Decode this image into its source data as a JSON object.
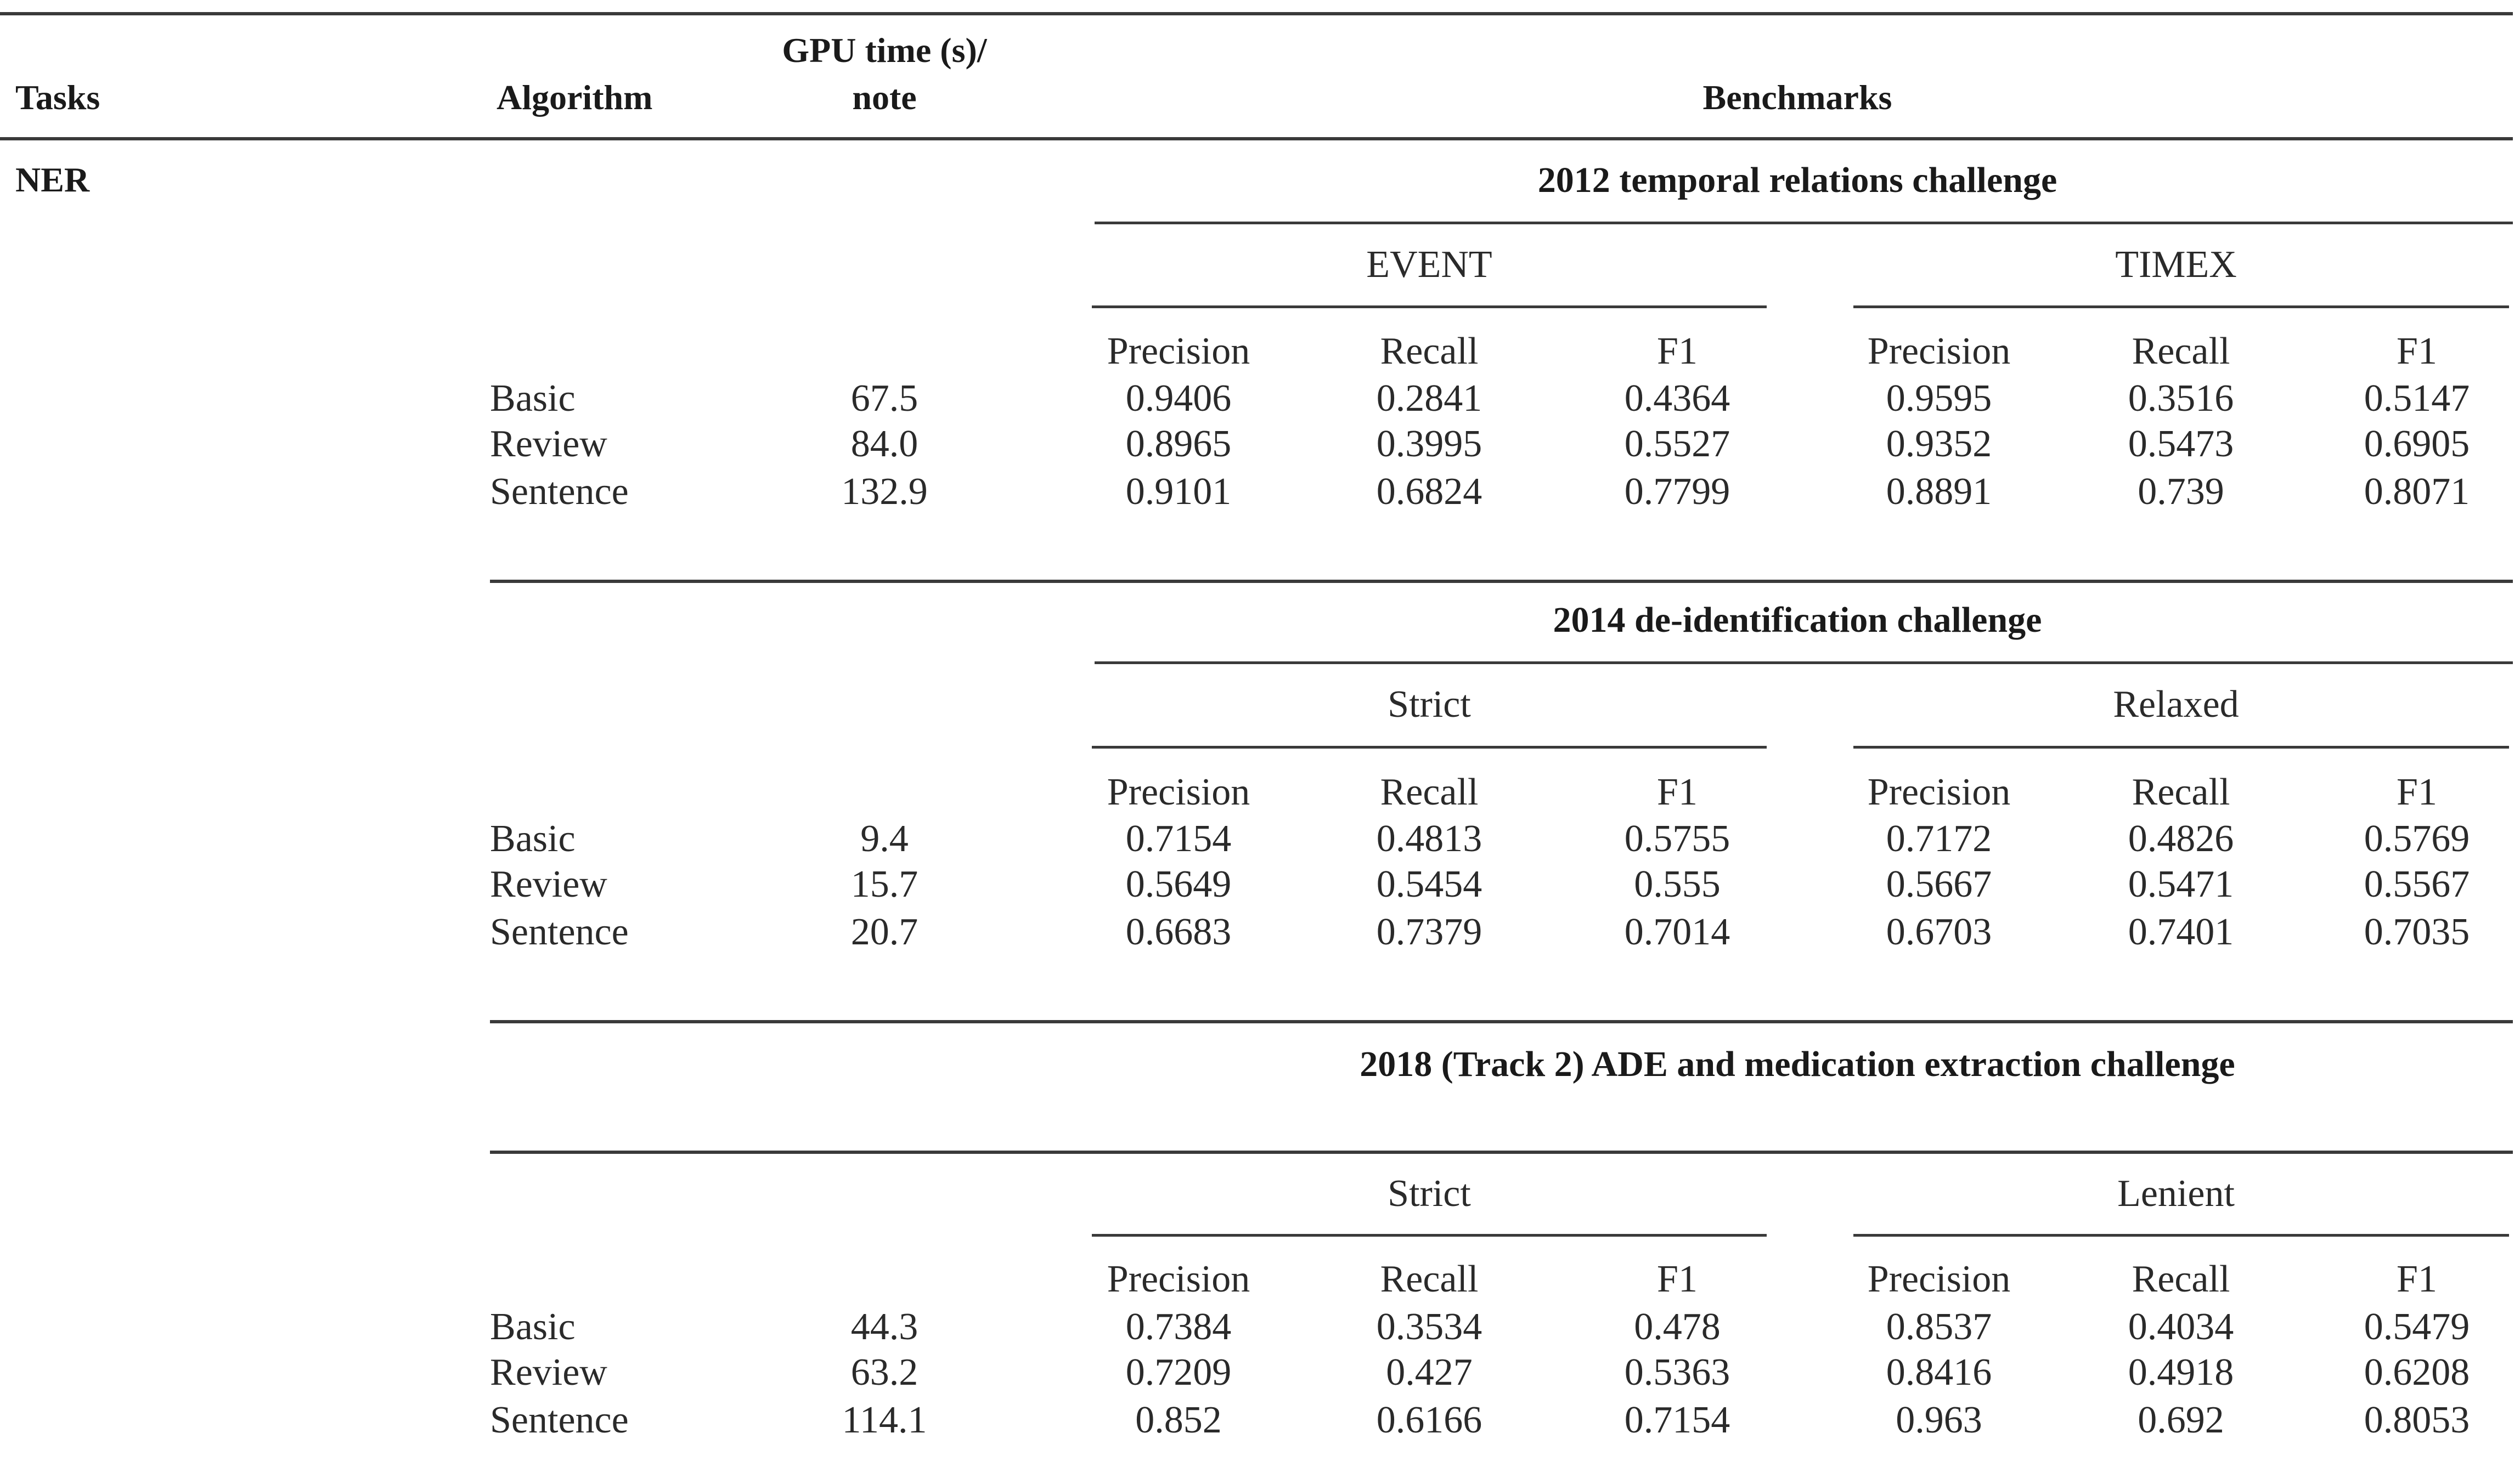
{
  "header": {
    "tasks": "Tasks",
    "algorithm": "Algorithm",
    "gpu_time_line1": "GPU time (s)/",
    "gpu_time_line2": "note",
    "benchmarks": "Benchmarks"
  },
  "task": "NER",
  "sections": [
    {
      "title": "2012 temporal relations challenge",
      "groups": [
        "EVENT",
        "TIMEX"
      ],
      "metrics": [
        "Precision",
        "Recall",
        "F1",
        "Precision",
        "Recall",
        "F1"
      ],
      "rows": [
        {
          "algorithm": "Basic",
          "gpu": "67.5",
          "values": [
            "0.9406",
            "0.2841",
            "0.4364",
            "0.9595",
            "0.3516",
            "0.5147"
          ]
        },
        {
          "algorithm": "Review",
          "gpu": "84.0",
          "values": [
            "0.8965",
            "0.3995",
            "0.5527",
            "0.9352",
            "0.5473",
            "0.6905"
          ]
        },
        {
          "algorithm": "Sentence",
          "gpu": "132.9",
          "values": [
            "0.9101",
            "0.6824",
            "0.7799",
            "0.8891",
            "0.739",
            "0.8071"
          ]
        }
      ]
    },
    {
      "title": "2014 de-identification challenge",
      "groups": [
        "Strict",
        "Relaxed"
      ],
      "metrics": [
        "Precision",
        "Recall",
        "F1",
        "Precision",
        "Recall",
        "F1"
      ],
      "rows": [
        {
          "algorithm": "Basic",
          "gpu": "9.4",
          "values": [
            "0.7154",
            "0.4813",
            "0.5755",
            "0.7172",
            "0.4826",
            "0.5769"
          ]
        },
        {
          "algorithm": "Review",
          "gpu": "15.7",
          "values": [
            "0.5649",
            "0.5454",
            "0.555",
            "0.5667",
            "0.5471",
            "0.5567"
          ]
        },
        {
          "algorithm": "Sentence",
          "gpu": "20.7",
          "values": [
            "0.6683",
            "0.7379",
            "0.7014",
            "0.6703",
            "0.7401",
            "0.7035"
          ]
        }
      ]
    },
    {
      "title": "2018 (Track 2) ADE and medication extraction challenge",
      "groups": [
        "Strict",
        "Lenient"
      ],
      "metrics": [
        "Precision",
        "Recall",
        "F1",
        "Precision",
        "Recall",
        "F1"
      ],
      "rows": [
        {
          "algorithm": "Basic",
          "gpu": "44.3",
          "values": [
            "0.7384",
            "0.3534",
            "0.478",
            "0.8537",
            "0.4034",
            "0.5479"
          ]
        },
        {
          "algorithm": "Review",
          "gpu": "63.2",
          "values": [
            "0.7209",
            "0.427",
            "0.5363",
            "0.8416",
            "0.4918",
            "0.6208"
          ]
        },
        {
          "algorithm": "Sentence",
          "gpu": "114.1",
          "values": [
            "0.852",
            "0.6166",
            "0.7154",
            "0.963",
            "0.692",
            "0.8053"
          ]
        }
      ]
    }
  ]
}
